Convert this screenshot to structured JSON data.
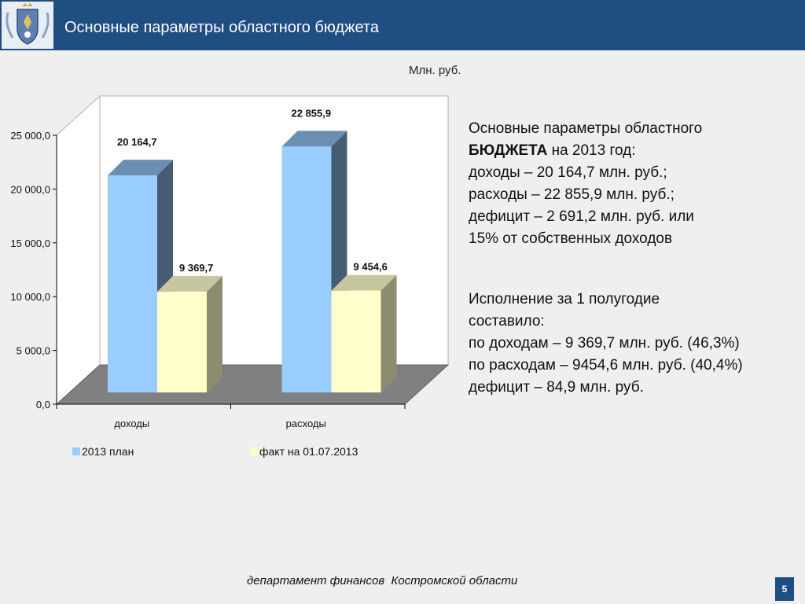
{
  "header": {
    "title": "Основные параметры областного бюджета",
    "logo_icon": "coat-of-arms-icon"
  },
  "units_label": "Млн. руб.",
  "chart_data": {
    "type": "bar",
    "categories": [
      "доходы",
      "расходы"
    ],
    "series": [
      {
        "name": "2013 план",
        "values": [
          20164.7,
          22855.9
        ],
        "labels": [
          "20 164,7",
          "22 855,9"
        ],
        "color": "#99ccff"
      },
      {
        "name": "факт на 01.07.2013",
        "values": [
          9369.7,
          9454.6
        ],
        "labels": [
          "9 369,7",
          "9 454,6"
        ],
        "color": "#ffffcc"
      }
    ],
    "ylim": [
      0,
      25000
    ],
    "yticks": [
      0,
      5000,
      10000,
      15000,
      20000,
      25000
    ],
    "ytick_labels": [
      "0,0",
      "5 000,0",
      "10 000,0",
      "15 000,0",
      "20 000,0",
      "25 000,0"
    ],
    "legend_position": "bottom",
    "grid": false,
    "three_d": true
  },
  "summary": {
    "line1": "Основные параметры областного",
    "line2_bold": "БЮДЖЕТА",
    "line2_rest": " на 2013 год:",
    "line3": "доходы – 20 164,7 млн. руб.;",
    "line4": "расходы – 22 855,9 млн. руб.;",
    "line5": "дефицит – 2 691,2 млн. руб. или",
    "line6": "15% от собственных доходов"
  },
  "execution": {
    "line1": "Исполнение за 1 полугодие",
    "line2": "составило:",
    "line3": "по доходам – 9 369,7 млн. руб. (46,3%)",
    "line4": "по расходам – 9454,6 млн. руб. (40,4%)",
    "line5": "дефицит – 84,9 млн. руб."
  },
  "footer": {
    "text": "департамент финансов  Костромской области",
    "page_number": "5"
  }
}
